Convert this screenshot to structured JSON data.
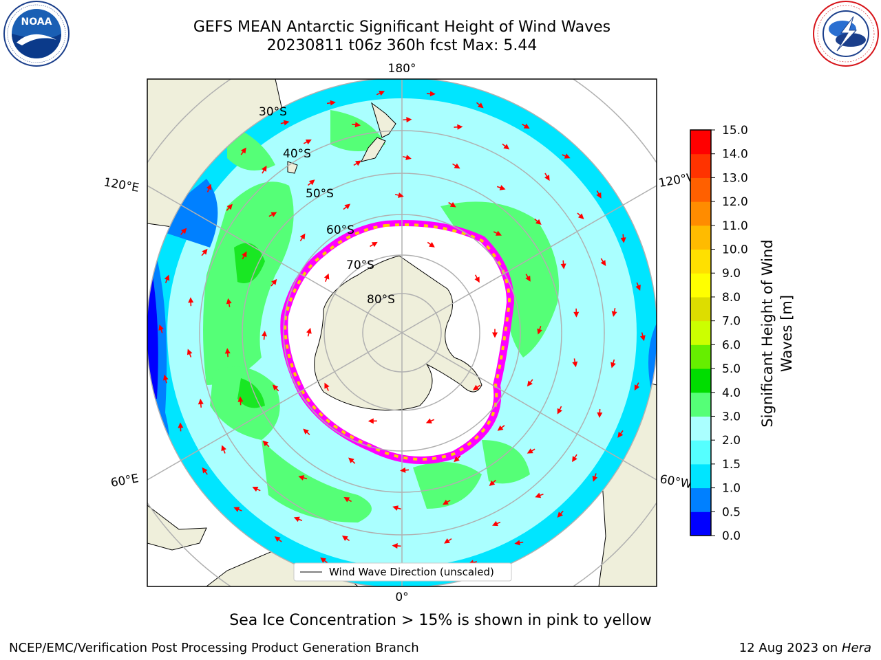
{
  "title": {
    "line1": "GEFS MEAN Antarctic Significant Height of Wind Waves",
    "line2": "20230811 t06z 360h fcst   Max: 5.44"
  },
  "logos": {
    "left": {
      "name": "noaa-logo",
      "text": "NOAA",
      "ring_text": "NATIONAL OCEANIC AND ATMOSPHERIC ADMINISTRATION · U.S. DEPARTMENT OF COMMERCE"
    },
    "right": {
      "name": "nws-logo",
      "ring_text": "NATIONAL WEATHER SERVICE"
    }
  },
  "map": {
    "projection": "south-polar-stereographic",
    "longitude_labels": [
      "180°",
      "120°E",
      "120°W",
      "60°E",
      "60°W",
      "0°"
    ],
    "latitude_labels": [
      "30°S",
      "40°S",
      "50°S",
      "60°S",
      "70°S",
      "80°S"
    ],
    "legend": "Wind Wave Direction (unscaled)",
    "arrow_color": "#ff0000",
    "land_color": "#efefdb",
    "sea_ice_colors": [
      "#ff00ff",
      "#ff66cc",
      "#ffcc00"
    ]
  },
  "colorbar": {
    "label_line1": "Significant Height of Wind",
    "label_line2": "Waves [m]",
    "ticks": [
      "0.0",
      "0.5",
      "1.0",
      "1.5",
      "2.0",
      "3.0",
      "4.0",
      "5.0",
      "6.0",
      "7.0",
      "8.0",
      "9.0",
      "10.0",
      "11.0",
      "12.0",
      "13.0",
      "14.0",
      "15.0"
    ],
    "colors": [
      "#0000ff",
      "#0080ff",
      "#00e5ff",
      "#55ffff",
      "#aaffff",
      "#55ff77",
      "#00dd00",
      "#66ee00",
      "#ccff00",
      "#dddd00",
      "#ffff00",
      "#ffe000",
      "#ffbb00",
      "#ff8c00",
      "#ff6000",
      "#ff3300",
      "#ff0000"
    ]
  },
  "notes": {
    "sea_ice": "Sea Ice Concentration > 15% is shown in pink to yellow"
  },
  "footer": {
    "left": "NCEP/EMC/Verification Post Processing Product Generation Branch",
    "date": "12 Aug 2023 on ",
    "host": "Hera"
  }
}
